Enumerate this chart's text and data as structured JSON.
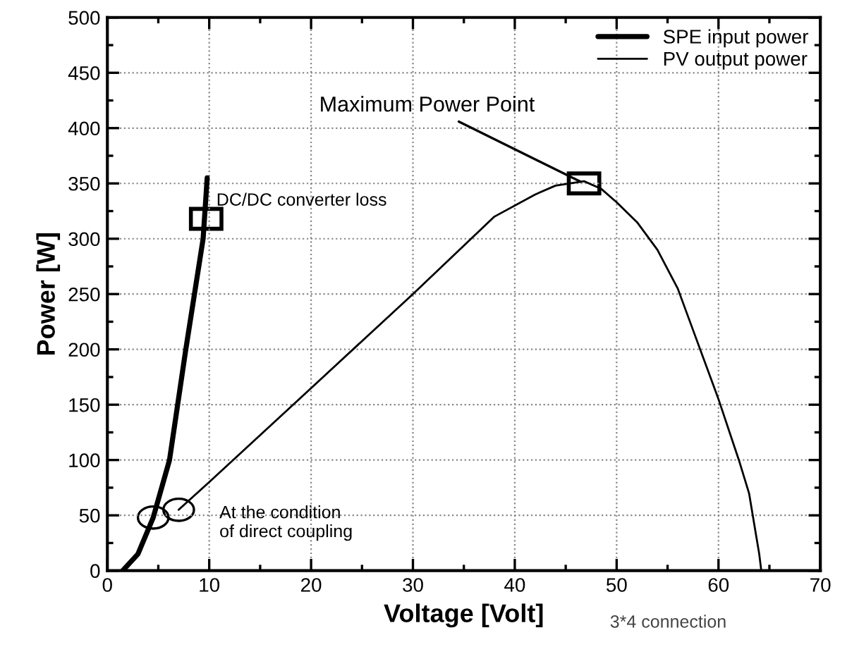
{
  "chart_data": {
    "type": "line",
    "xlabel": "Voltage [Volt]",
    "ylabel": "Power [W]",
    "xlim": [
      0,
      70
    ],
    "ylim": [
      0,
      500
    ],
    "xticks": [
      0,
      10,
      20,
      30,
      40,
      50,
      60,
      70
    ],
    "yticks": [
      0,
      50,
      100,
      150,
      200,
      250,
      300,
      350,
      400,
      450,
      500
    ],
    "grid": true,
    "legend": "top right",
    "marker": "none",
    "line_style": "solid",
    "series": [
      {
        "name": "SPE input power",
        "color": "#000000",
        "x": [
          1.5,
          3,
          4.5,
          6.1,
          7.7,
          9.4,
          9.8
        ],
        "values": [
          0,
          15,
          48,
          100,
          200,
          300,
          355
        ]
      },
      {
        "name": "PV output power",
        "color": "#000000",
        "x": [
          7,
          10,
          20,
          30,
          38,
          42,
          44,
          46.8,
          48.5,
          50,
          52,
          54,
          56,
          58,
          60,
          62,
          63,
          64,
          64.2
        ],
        "values": [
          55,
          80,
          165,
          250,
          320,
          340,
          348,
          352,
          345,
          333,
          315,
          290,
          255,
          205,
          155,
          100,
          70,
          15,
          0
        ]
      }
    ],
    "annotations": [
      {
        "text": "Maximum Power Point",
        "x": 46.8,
        "y": 350
      },
      {
        "text": "DC/DC converter loss",
        "x": 9.7,
        "y": 318
      },
      {
        "text": "At the condition\nof direct coupling",
        "x": 7,
        "y": 55
      },
      "3*4 connection"
    ]
  }
}
